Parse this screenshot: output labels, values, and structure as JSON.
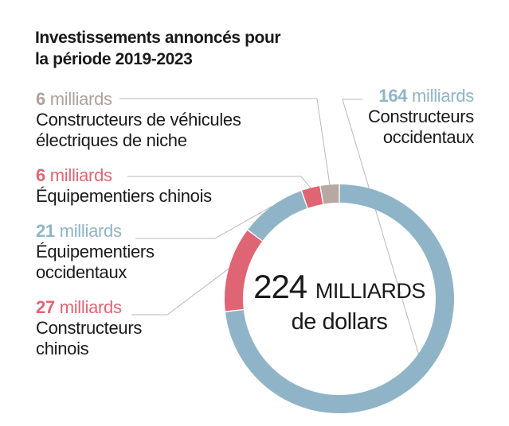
{
  "chart_data": {
    "type": "pie",
    "title": "Investissements annoncés pour la période 2019-2023",
    "total": {
      "value": "224",
      "unit": "MILLIARDS",
      "suffix": "de dollars"
    },
    "slices": [
      {
        "key": "west_makers",
        "amount": "164",
        "unit": "milliards",
        "label": "Constructeurs occidentaux",
        "value": 164,
        "color": "#8fb4c7",
        "amount_color": "#8fb4c7"
      },
      {
        "key": "cn_makers",
        "amount": "27",
        "unit": "milliards",
        "label": "Constructeurs chinois",
        "value": 27,
        "color": "#e06574",
        "amount_color": "#e06574"
      },
      {
        "key": "west_equip",
        "amount": "21",
        "unit": "milliards",
        "label": "Équipementiers occidentaux",
        "value": 21,
        "color": "#8fb4c7",
        "amount_color": "#8fb4c7"
      },
      {
        "key": "cn_equip",
        "amount": "6",
        "unit": "milliards",
        "label": "Équipementiers chinois",
        "value": 6,
        "color": "#e06574",
        "amount_color": "#e06574"
      },
      {
        "key": "niche",
        "amount": "6",
        "unit": "milliards",
        "label": "Constructeurs de véhicules électriques de niche",
        "value": 6,
        "color": "#b8a8a4",
        "amount_color": "#b0a09b"
      }
    ]
  },
  "labels": {
    "title_line1": "Investissements annoncés pour",
    "title_line2": "la période 2019-2023",
    "niche_line1": "Constructeurs de véhicules",
    "niche_line2": "électriques de niche",
    "cn_equip_line1": "Équipementiers chinois",
    "west_equip_line1": "Équipementiers",
    "west_equip_line2": "occidentaux",
    "cn_makers_line1": "Constructeurs",
    "cn_makers_line2": "chinois",
    "west_makers_line1": "Constructeurs",
    "west_makers_line2": "occidentaux"
  }
}
